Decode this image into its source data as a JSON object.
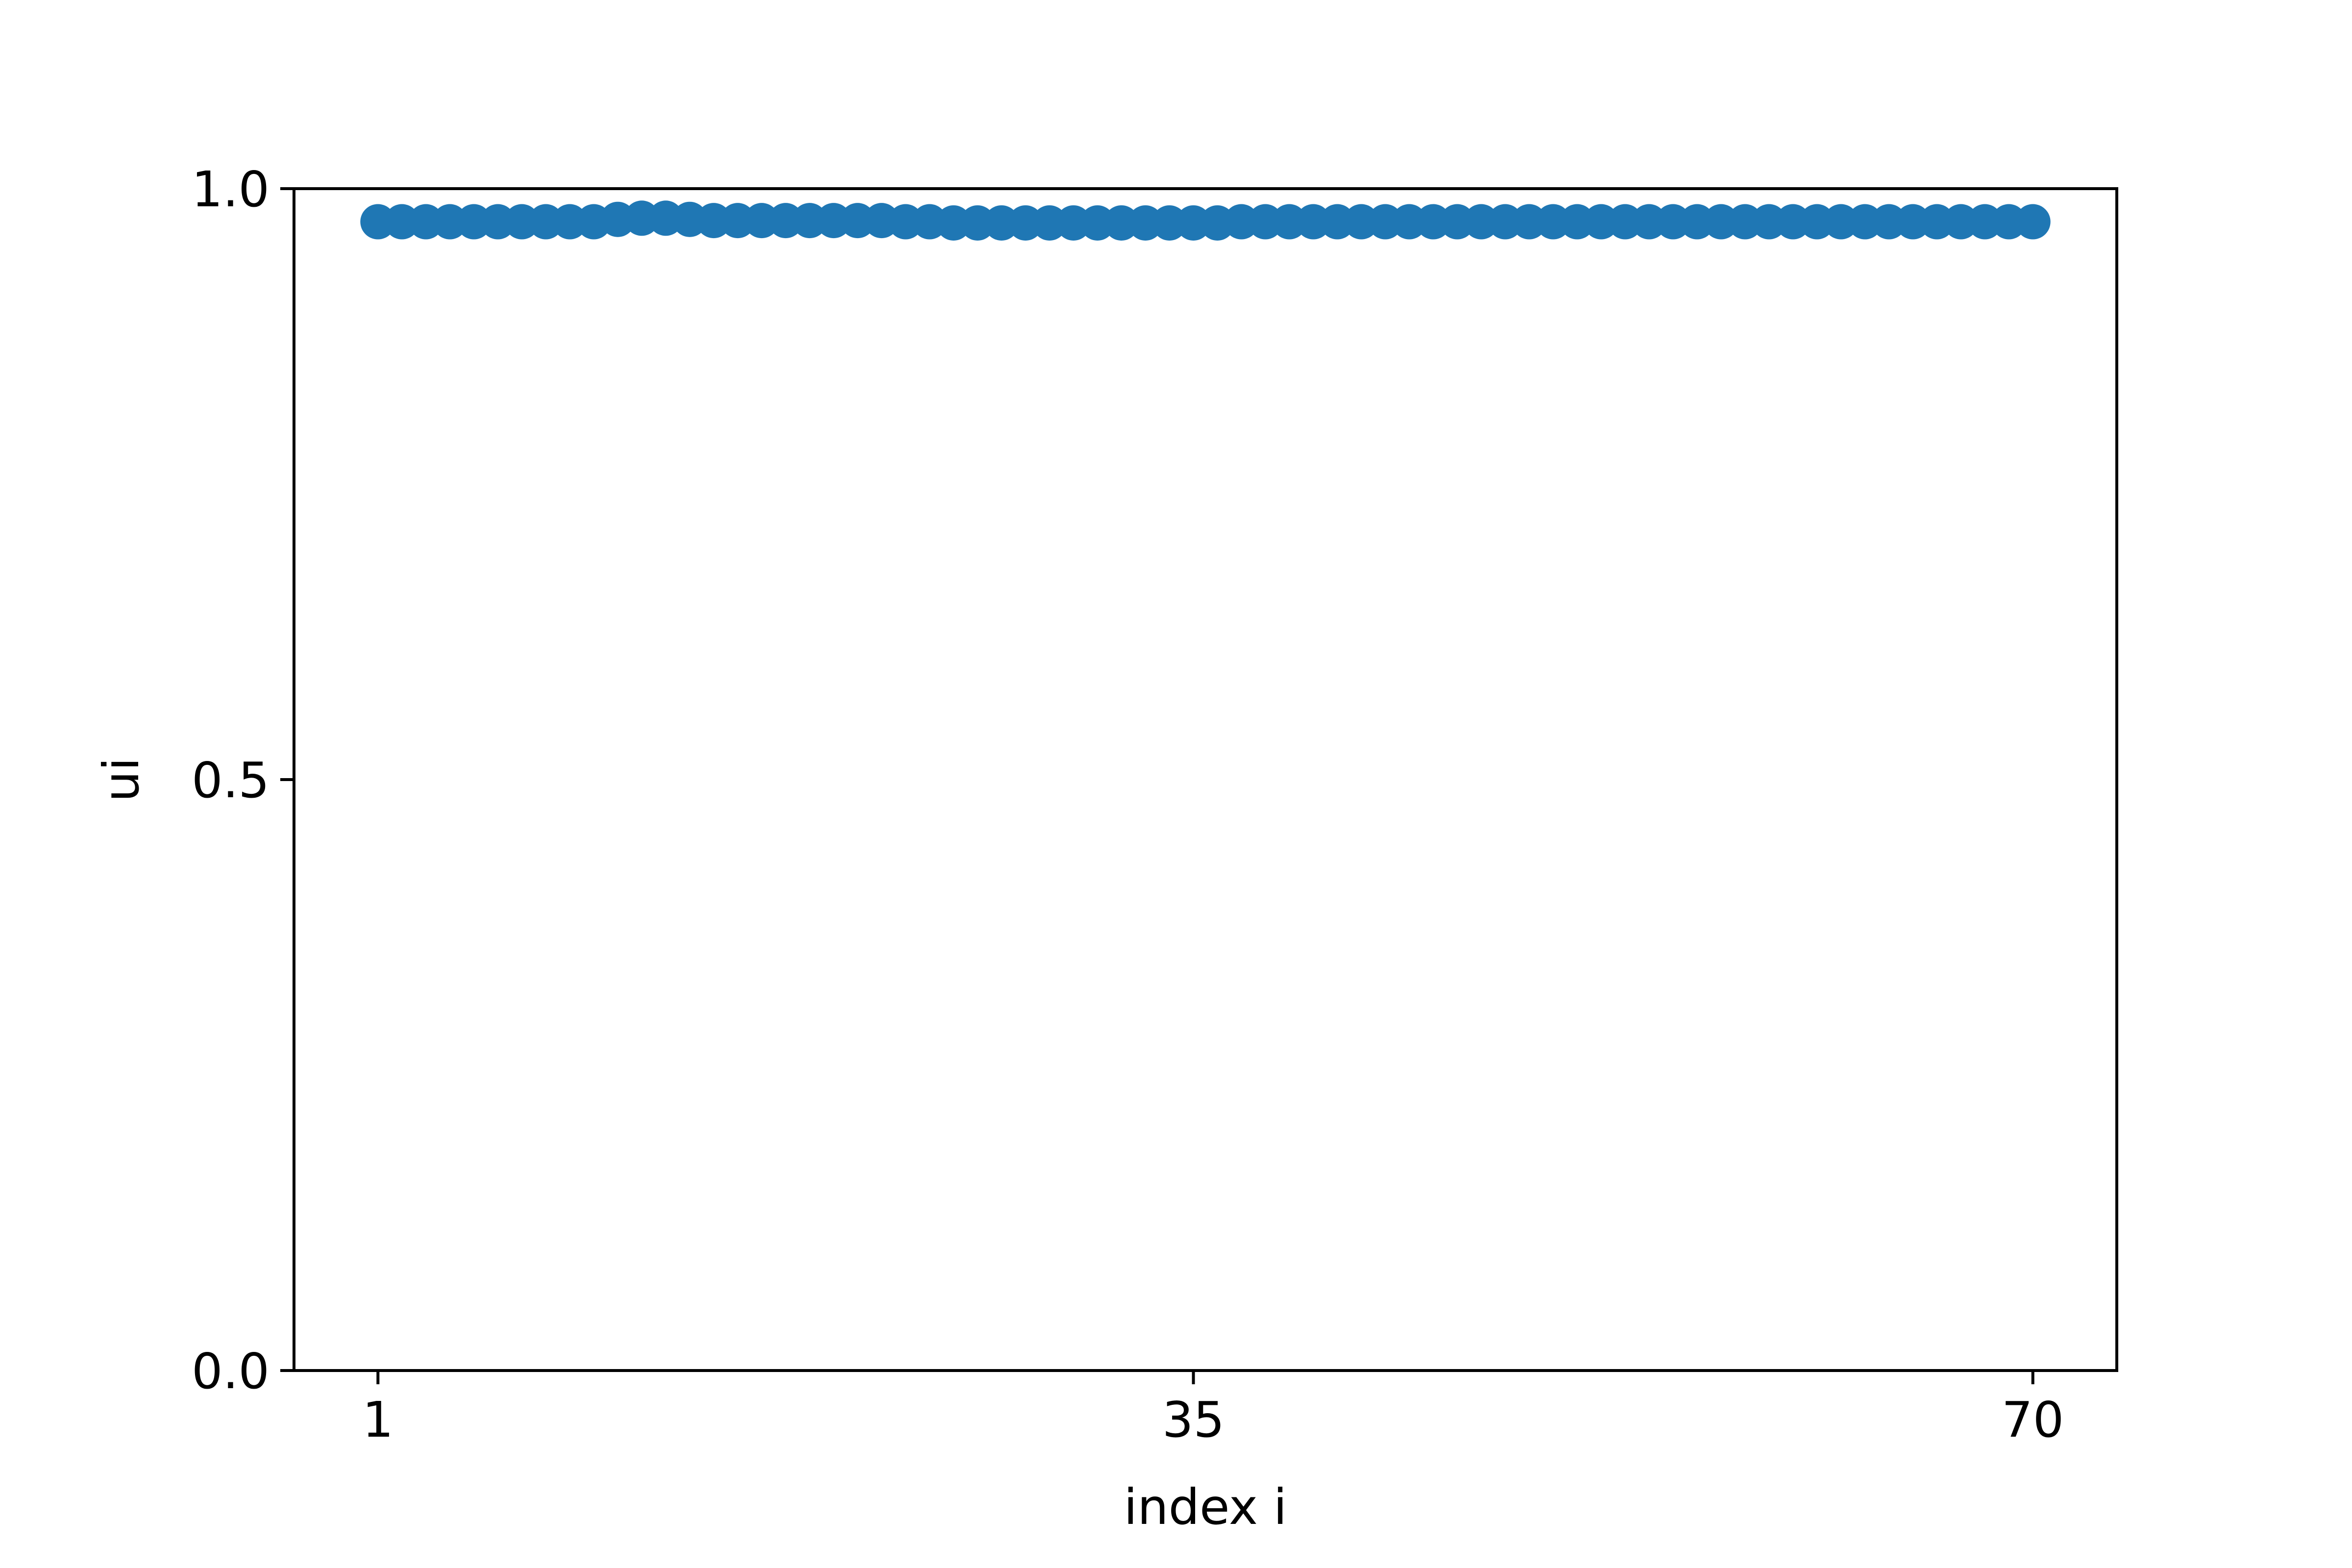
{
  "chart_data": {
    "type": "scatter",
    "xlabel": "index i",
    "ylabel": "ui",
    "xlim": [
      -2.5,
      73.5
    ],
    "ylim": [
      0.0,
      1.0
    ],
    "xticks": [
      1,
      35,
      70
    ],
    "xtick_labels": [
      "1",
      "35",
      "70"
    ],
    "yticks": [
      0.0,
      0.5,
      1.0
    ],
    "ytick_labels": [
      "0.0",
      "0.5",
      "1.0"
    ],
    "grid": false,
    "marker_color": "#1f77b4",
    "series": [
      {
        "x": [
          1,
          2,
          3,
          4,
          5,
          6,
          7,
          8,
          9,
          10,
          11,
          12,
          13,
          14,
          15,
          16,
          17,
          18,
          19,
          20,
          21,
          22,
          23,
          24,
          25,
          26,
          27,
          28,
          29,
          30,
          31,
          32,
          33,
          34,
          35,
          36,
          37,
          38,
          39,
          40,
          41,
          42,
          43,
          44,
          45,
          46,
          47,
          48,
          49,
          50,
          51,
          52,
          53,
          54,
          55,
          56,
          57,
          58,
          59,
          60,
          61,
          62,
          63,
          64,
          65,
          66,
          67,
          68,
          69,
          70
        ],
        "y": [
          0.972,
          0.972,
          0.972,
          0.972,
          0.972,
          0.972,
          0.972,
          0.972,
          0.972,
          0.972,
          0.974,
          0.975,
          0.975,
          0.974,
          0.973,
          0.973,
          0.973,
          0.973,
          0.973,
          0.973,
          0.973,
          0.973,
          0.972,
          0.972,
          0.971,
          0.971,
          0.971,
          0.971,
          0.971,
          0.971,
          0.971,
          0.971,
          0.971,
          0.971,
          0.971,
          0.971,
          0.972,
          0.972,
          0.972,
          0.972,
          0.972,
          0.972,
          0.972,
          0.972,
          0.972,
          0.972,
          0.972,
          0.972,
          0.972,
          0.972,
          0.972,
          0.972,
          0.972,
          0.972,
          0.972,
          0.972,
          0.972,
          0.972,
          0.972,
          0.972,
          0.972,
          0.972,
          0.972,
          0.972,
          0.972,
          0.972,
          0.972,
          0.972,
          0.972,
          0.972
        ]
      }
    ]
  }
}
